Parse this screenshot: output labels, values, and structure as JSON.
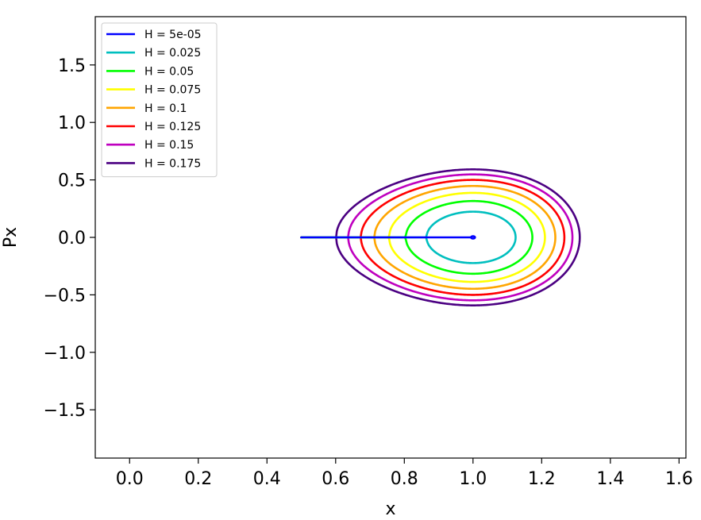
{
  "chart_data": {
    "type": "line",
    "title": "",
    "xlabel": "x",
    "ylabel": "Px",
    "xlim": [
      -0.1,
      1.62
    ],
    "ylim": [
      -1.92,
      1.92
    ],
    "grid": false,
    "legend_position": "top-left",
    "x_ticks": [
      0.0,
      0.2,
      0.4,
      0.6,
      0.8,
      1.0,
      1.2,
      1.4,
      1.6
    ],
    "x_tick_labels": [
      "0.0",
      "0.2",
      "0.4",
      "0.6",
      "0.8",
      "1.0",
      "1.2",
      "1.4",
      "1.6"
    ],
    "y_ticks": [
      -1.5,
      -1.0,
      -0.5,
      0.0,
      0.5,
      1.0,
      1.5
    ],
    "y_tick_labels": [
      "−1.5",
      "−1.0",
      "−0.5",
      "0.0",
      "0.5",
      "1.0",
      "1.5"
    ],
    "series": [
      {
        "name": "H = 5e-05",
        "H": 5e-05,
        "color": "#0000ff"
      },
      {
        "name": "H = 0.025",
        "H": 0.025,
        "color": "#00bfbf"
      },
      {
        "name": "H = 0.05",
        "H": 0.05,
        "color": "#00ff00"
      },
      {
        "name": "H = 0.075",
        "H": 0.075,
        "color": "#ffff00"
      },
      {
        "name": "H = 0.1",
        "H": 0.1,
        "color": "#ffa500"
      },
      {
        "name": "H = 0.125",
        "H": 0.125,
        "color": "#ff0000"
      },
      {
        "name": "H = 0.15",
        "H": 0.15,
        "color": "#bf00bf"
      },
      {
        "name": "H = 0.175",
        "H": 0.175,
        "color": "#4b0082"
      }
    ]
  }
}
